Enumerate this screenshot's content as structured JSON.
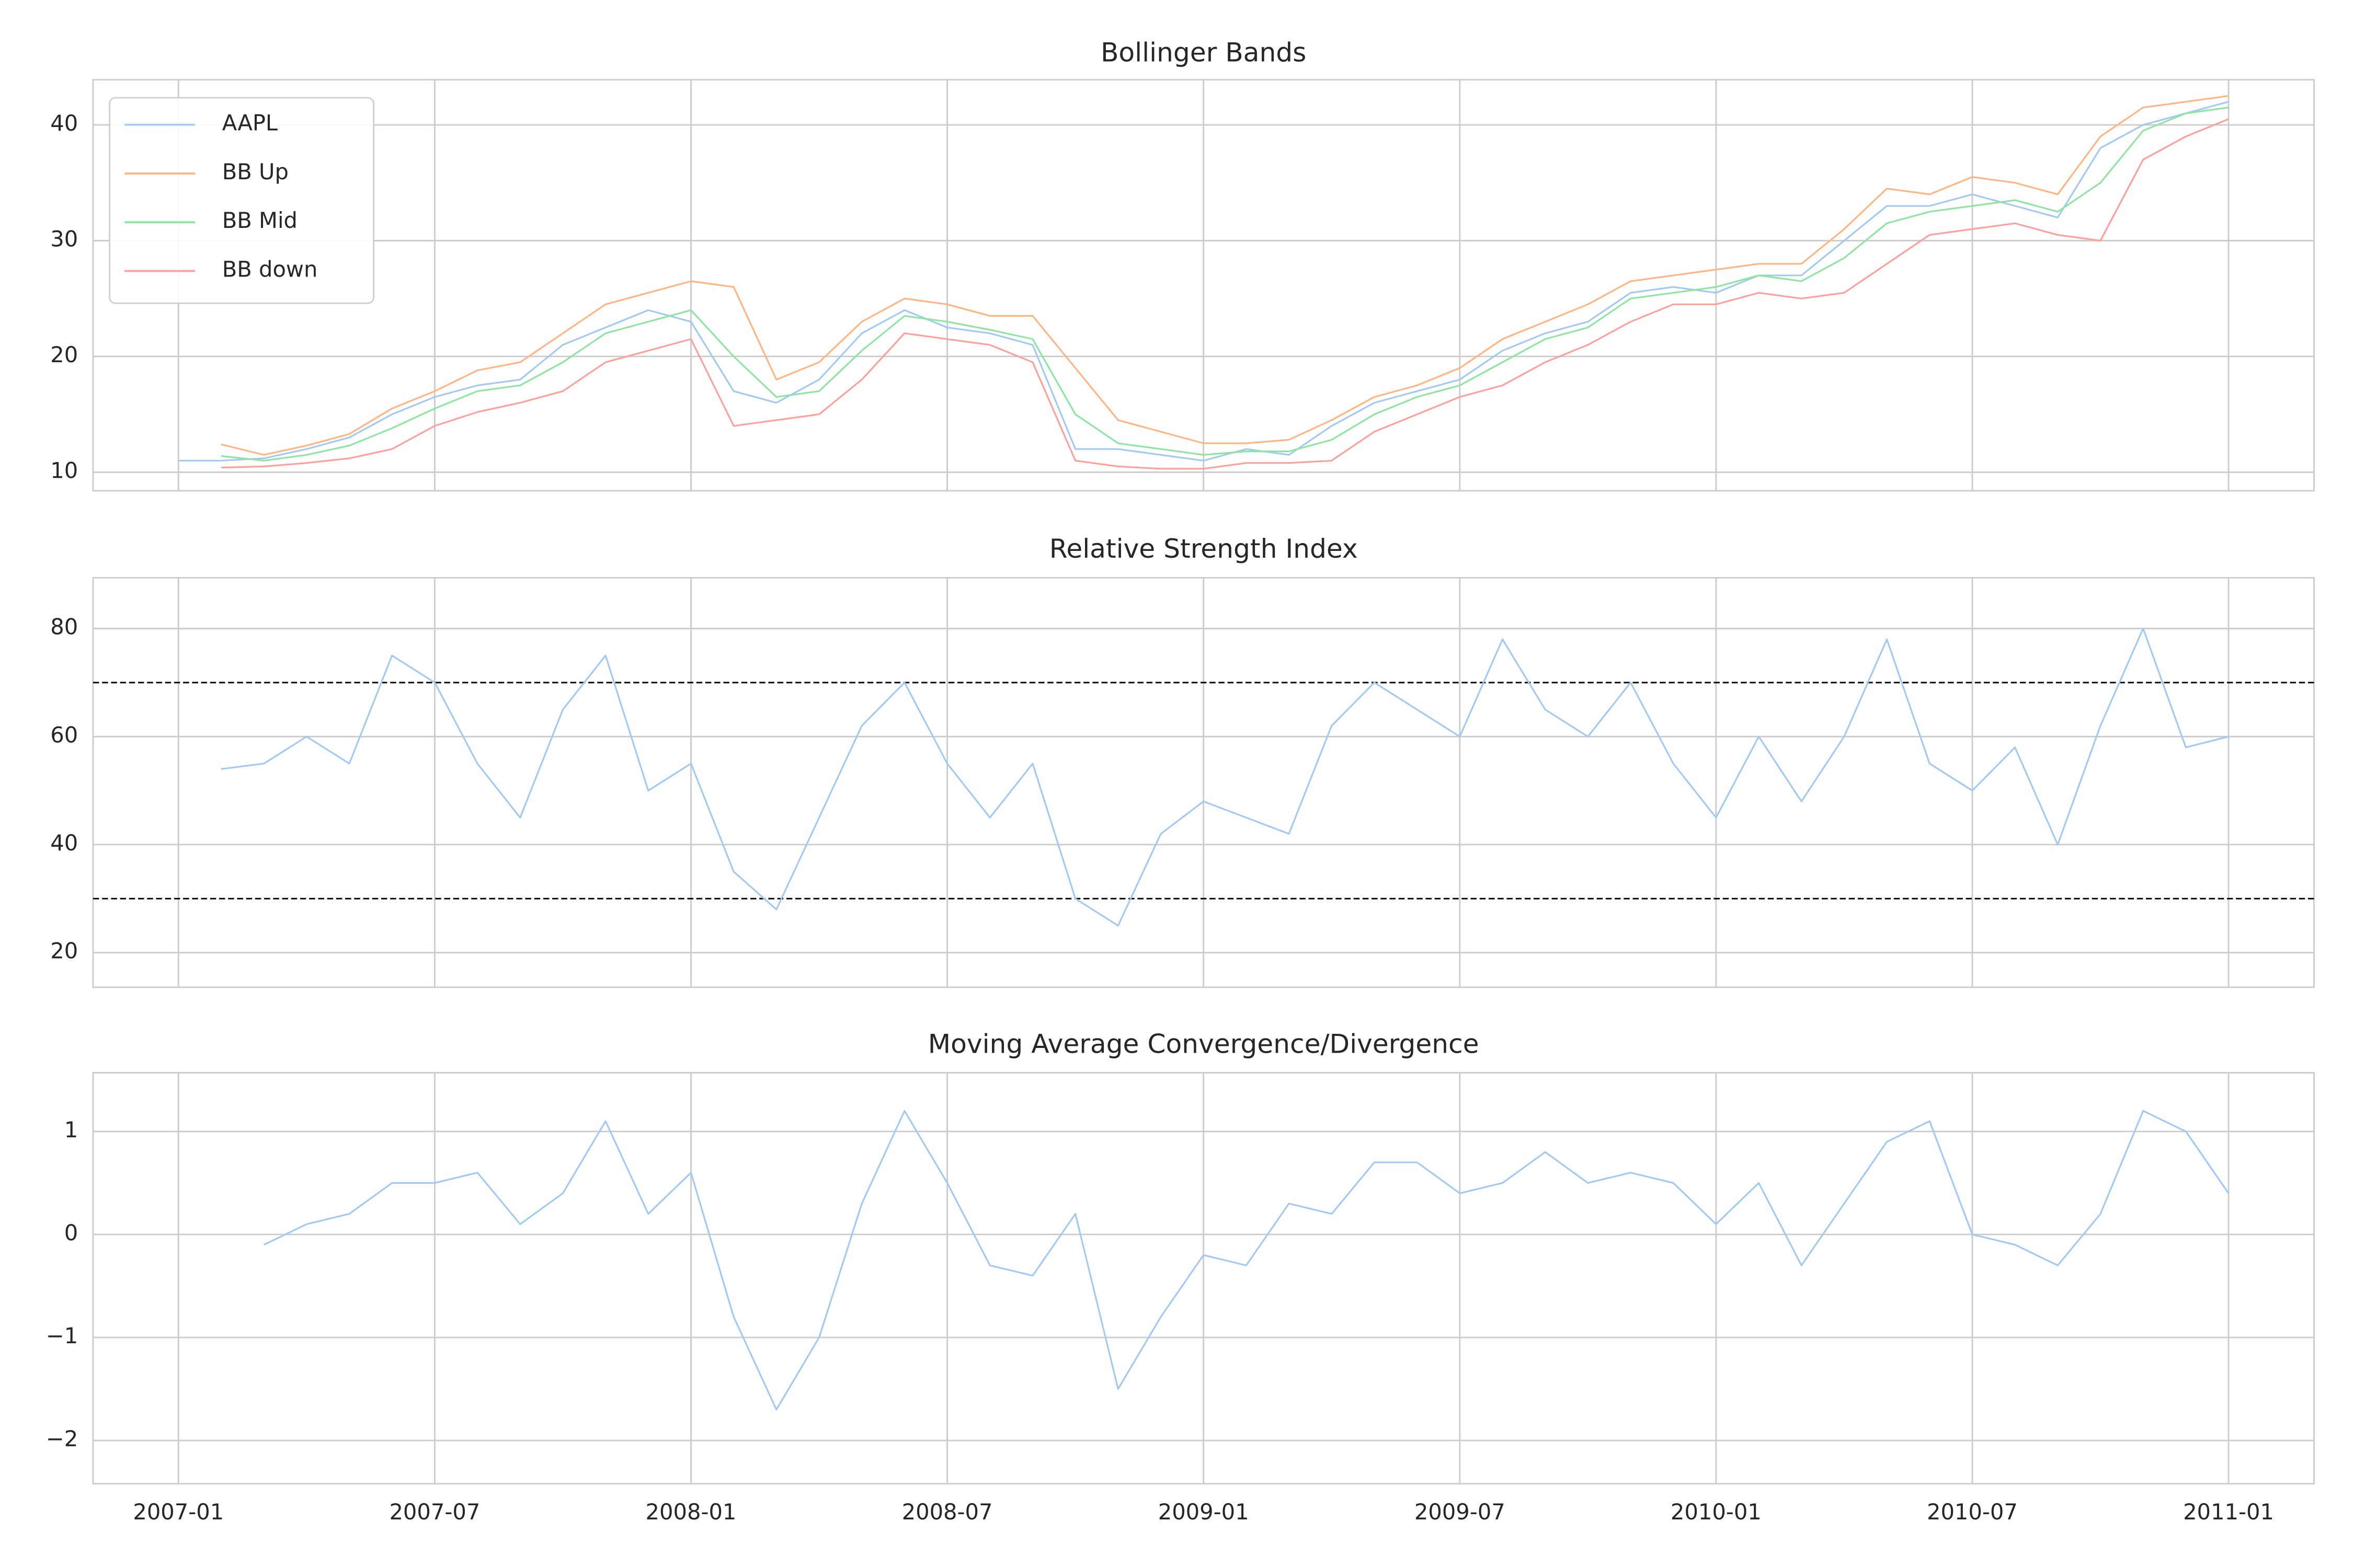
{
  "chart_data": [
    {
      "type": "line",
      "title": "Bollinger Bands",
      "legend": "upper left",
      "grid": true,
      "x": [
        "2007-01",
        "2007-02",
        "2007-03",
        "2007-04",
        "2007-05",
        "2007-06",
        "2007-07",
        "2007-08",
        "2007-09",
        "2007-10",
        "2007-11",
        "2007-12",
        "2008-01",
        "2008-02",
        "2008-03",
        "2008-04",
        "2008-05",
        "2008-06",
        "2008-07",
        "2008-08",
        "2008-09",
        "2008-10",
        "2008-11",
        "2008-12",
        "2009-01",
        "2009-02",
        "2009-03",
        "2009-04",
        "2009-05",
        "2009-06",
        "2009-07",
        "2009-08",
        "2009-09",
        "2009-10",
        "2009-11",
        "2009-12",
        "2010-01",
        "2010-02",
        "2010-03",
        "2010-04",
        "2010-05",
        "2010-06",
        "2010-07",
        "2010-08",
        "2010-09",
        "2010-10",
        "2010-11",
        "2010-12",
        "2011-01"
      ],
      "series": [
        {
          "name": "AAPL",
          "color": "#a1c9f4",
          "values": [
            11,
            11,
            11.2,
            12,
            13,
            15,
            16.5,
            17.5,
            18,
            21,
            22.5,
            24,
            23,
            17,
            16,
            18,
            22,
            24,
            22.5,
            22,
            21,
            12,
            12,
            11.5,
            11,
            12,
            11.5,
            14,
            16,
            17,
            18,
            20.5,
            22,
            23,
            25.5,
            26,
            25.5,
            27,
            27,
            30,
            33,
            33,
            34,
            33,
            32,
            38,
            40,
            41,
            42
          ]
        },
        {
          "name": "BB Up",
          "color": "#ffb482",
          "values": [
            null,
            12.4,
            11.5,
            12.3,
            13.3,
            15.5,
            17,
            18.8,
            19.5,
            22,
            24.5,
            25.5,
            26.5,
            26,
            18,
            19.5,
            23,
            25,
            24.5,
            23.5,
            23.5,
            19,
            14.5,
            13.5,
            12.5,
            12.5,
            12.8,
            14.5,
            16.5,
            17.5,
            19,
            21.5,
            23,
            24.5,
            26.5,
            27,
            27.5,
            28,
            28,
            31,
            34.5,
            34,
            35.5,
            35,
            34,
            39,
            41.5,
            42,
            42.5
          ]
        },
        {
          "name": "BB Mid",
          "color": "#8de5a1",
          "values": [
            null,
            11.4,
            11,
            11.5,
            12.3,
            13.8,
            15.5,
            17,
            17.5,
            19.5,
            22,
            23,
            24,
            20,
            16.5,
            17,
            20.5,
            23.5,
            23,
            22.3,
            21.5,
            15,
            12.5,
            12,
            11.5,
            11.8,
            11.8,
            12.8,
            15,
            16.5,
            17.5,
            19.5,
            21.5,
            22.5,
            25,
            25.5,
            26,
            27,
            26.5,
            28.5,
            31.5,
            32.5,
            33,
            33.5,
            32.5,
            35,
            39.5,
            41,
            41.5
          ]
        },
        {
          "name": "BB down",
          "color": "#ff9f9b",
          "values": [
            null,
            10.4,
            10.5,
            10.8,
            11.2,
            12,
            14,
            15.2,
            16,
            17,
            19.5,
            20.5,
            21.5,
            14,
            14.5,
            15,
            18,
            22,
            21.5,
            21,
            19.5,
            11,
            10.5,
            10.3,
            10.3,
            10.8,
            10.8,
            11,
            13.5,
            15,
            16.5,
            17.5,
            19.5,
            21,
            23,
            24.5,
            24.5,
            25.5,
            25,
            25.5,
            28,
            30.5,
            31,
            31.5,
            30.5,
            30,
            37,
            39,
            40.5
          ]
        }
      ],
      "xlim": [
        "2006-11",
        "2011-03"
      ],
      "xticks": [
        "2007-01",
        "2007-07",
        "2008-01",
        "2008-07",
        "2009-01",
        "2009-07",
        "2010-01",
        "2010-07",
        "2011-01"
      ],
      "ylim": [
        8.4,
        43.9
      ],
      "yticks": [
        10,
        20,
        30,
        40
      ]
    },
    {
      "type": "line",
      "title": "Relative Strength Index",
      "grid": true,
      "x": [
        "2007-01",
        "2007-02",
        "2007-03",
        "2007-04",
        "2007-05",
        "2007-06",
        "2007-07",
        "2007-08",
        "2007-09",
        "2007-10",
        "2007-11",
        "2007-12",
        "2008-01",
        "2008-02",
        "2008-03",
        "2008-04",
        "2008-05",
        "2008-06",
        "2008-07",
        "2008-08",
        "2008-09",
        "2008-10",
        "2008-11",
        "2008-12",
        "2009-01",
        "2009-02",
        "2009-03",
        "2009-04",
        "2009-05",
        "2009-06",
        "2009-07",
        "2009-08",
        "2009-09",
        "2009-10",
        "2009-11",
        "2009-12",
        "2010-01",
        "2010-02",
        "2010-03",
        "2010-04",
        "2010-05",
        "2010-06",
        "2010-07",
        "2010-08",
        "2010-09",
        "2010-10",
        "2010-11",
        "2010-12",
        "2011-01"
      ],
      "series": [
        {
          "color": "#a1c9f4",
          "values": [
            null,
            54,
            55,
            60,
            55,
            75,
            70,
            55,
            45,
            65,
            75,
            50,
            55,
            35,
            28,
            45,
            62,
            70,
            55,
            45,
            55,
            30,
            25,
            42,
            48,
            45,
            42,
            62,
            70,
            65,
            60,
            78,
            65,
            60,
            70,
            55,
            45,
            60,
            48,
            60,
            78,
            55,
            50,
            58,
            40,
            62,
            80,
            58,
            60
          ]
        }
      ],
      "hlines": [
        70,
        30
      ],
      "hline_color": "#000000",
      "xlim": [
        "2006-11",
        "2011-03"
      ],
      "xticks": [
        "2007-01",
        "2007-07",
        "2008-01",
        "2008-07",
        "2009-01",
        "2009-07",
        "2010-01",
        "2010-07",
        "2011-01"
      ],
      "ylim": [
        13.6,
        89.4
      ],
      "yticks": [
        20,
        40,
        60,
        80
      ]
    },
    {
      "type": "line",
      "title": "Moving Average Convergence/Divergence",
      "grid": true,
      "x": [
        "2007-01",
        "2007-02",
        "2007-03",
        "2007-04",
        "2007-05",
        "2007-06",
        "2007-07",
        "2007-08",
        "2007-09",
        "2007-10",
        "2007-11",
        "2007-12",
        "2008-01",
        "2008-02",
        "2008-03",
        "2008-04",
        "2008-05",
        "2008-06",
        "2008-07",
        "2008-08",
        "2008-09",
        "2008-10",
        "2008-11",
        "2008-12",
        "2009-01",
        "2009-02",
        "2009-03",
        "2009-04",
        "2009-05",
        "2009-06",
        "2009-07",
        "2009-08",
        "2009-09",
        "2009-10",
        "2009-11",
        "2009-12",
        "2010-01",
        "2010-02",
        "2010-03",
        "2010-04",
        "2010-05",
        "2010-06",
        "2010-07",
        "2010-08",
        "2010-09",
        "2010-10",
        "2010-11",
        "2010-12",
        "2011-01"
      ],
      "series": [
        {
          "color": "#a1c9f4",
          "values": [
            null,
            null,
            -0.1,
            0.1,
            0.2,
            0.5,
            0.5,
            0.6,
            0.1,
            0.4,
            1.1,
            0.2,
            0.6,
            -0.8,
            -1.7,
            -1.0,
            0.3,
            1.2,
            0.5,
            -0.3,
            -0.4,
            0.2,
            -1.5,
            -0.8,
            -0.2,
            -0.3,
            0.3,
            0.2,
            0.7,
            0.7,
            0.4,
            0.5,
            0.8,
            0.5,
            0.6,
            0.5,
            0.1,
            0.5,
            -0.3,
            0.3,
            0.9,
            1.1,
            0.0,
            -0.1,
            -0.3,
            0.2,
            1.2,
            1.0,
            0.4
          ]
        }
      ],
      "xlim": [
        "2006-11",
        "2011-03"
      ],
      "xticks": [
        "2007-01",
        "2007-07",
        "2008-01",
        "2008-07",
        "2009-01",
        "2009-07",
        "2010-01",
        "2010-07",
        "2011-01"
      ],
      "ylim": [
        -2.42,
        1.57
      ],
      "yticks": [
        {
          "value": -2,
          "label": "−2"
        },
        {
          "value": -1,
          "label": "−1"
        },
        0,
        1
      ]
    }
  ]
}
